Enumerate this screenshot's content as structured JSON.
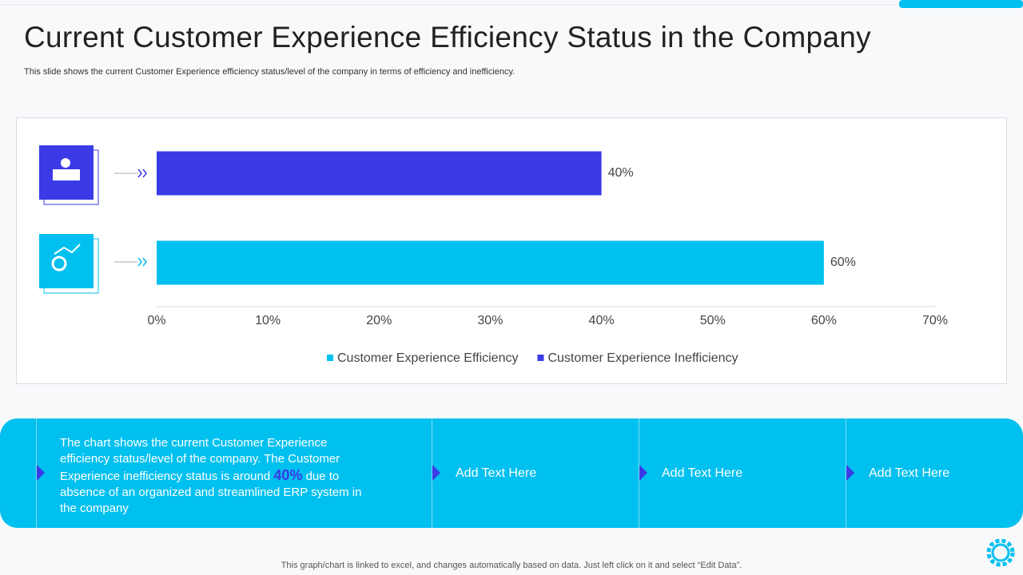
{
  "title": "Current Customer Experience Efficiency Status in the Company",
  "subtitle": "This slide shows the current Customer Experience efficiency status/level of the company in terms of efficiency and inefficiency.",
  "chart_data": {
    "type": "bar",
    "orientation": "horizontal",
    "series": [
      {
        "name": "Customer Experience Efficiency",
        "color": "#00c0ef",
        "values": [
          60
        ],
        "value_labels": [
          "60%"
        ]
      },
      {
        "name": "Customer Experience Inefficiency",
        "color": "#3a3ae6",
        "values": [
          40
        ],
        "value_labels": [
          "40%"
        ]
      }
    ],
    "xlim": [
      0,
      70
    ],
    "xticks": [
      {
        "value": 0,
        "label": "0%"
      },
      {
        "value": 10,
        "label": "10%"
      },
      {
        "value": 20,
        "label": "20%"
      },
      {
        "value": 30,
        "label": "30%"
      },
      {
        "value": 40,
        "label": "40%"
      },
      {
        "value": 50,
        "label": "50%"
      },
      {
        "value": 60,
        "label": "60%"
      },
      {
        "value": 70,
        "label": "70%"
      }
    ],
    "legend": "bottom"
  },
  "panel": {
    "body": [
      "The chart shows the current Customer Experience efficiency status/level of the company. The Customer Experience inefficiency status is around ",
      "40%",
      " due to absence of an organized and streamlined ERP system in the company"
    ],
    "items": [
      "Add Text Here",
      "Add Text Here",
      "Add Text Here"
    ]
  },
  "footer": "This graph/chart is linked to excel, and changes automatically based on data. Just left click on it and select “Edit Data”."
}
